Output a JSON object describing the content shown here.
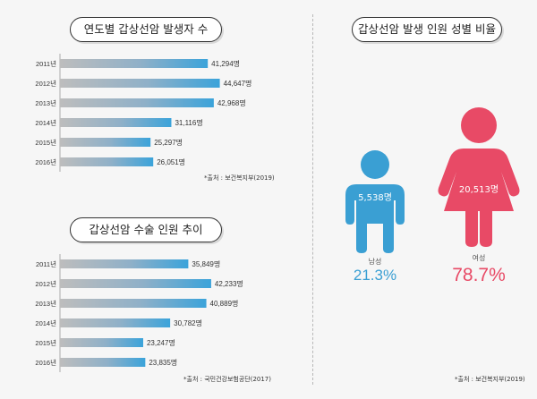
{
  "charts": [
    {
      "title": "연도별 갑상선암 발생자 수",
      "source": "*출처 : 보건복지부(2019)",
      "chart_data": {
        "type": "bar",
        "orientation": "horizontal",
        "categories": [
          "2011년",
          "2012년",
          "2013년",
          "2014년",
          "2015년",
          "2016년"
        ],
        "values": [
          41294,
          44647,
          42968,
          31116,
          25297,
          26051
        ],
        "value_labels": [
          "41,294명",
          "44,647명",
          "42,968명",
          "31,116명",
          "25,297명",
          "26,051명"
        ],
        "xlim": [
          0,
          45000
        ]
      }
    },
    {
      "title": "갑상선암 수술 인원 추이",
      "source": "*출처 : 국민건강보험공단(2017)",
      "chart_data": {
        "type": "bar",
        "orientation": "horizontal",
        "categories": [
          "2011년",
          "2012년",
          "2013년",
          "2014년",
          "2015년",
          "2016년"
        ],
        "values": [
          35849,
          42233,
          40889,
          30782,
          23247,
          23835
        ],
        "value_labels": [
          "35,849명",
          "42,233명",
          "40,889명",
          "30,782명",
          "23,247명",
          "23,835명"
        ],
        "xlim": [
          0,
          45000
        ]
      }
    }
  ],
  "gender": {
    "title": "갑상선암 발생 인원 성별 비율",
    "source": "*출처 : 보건복지부(2019)",
    "male": {
      "label": "남성",
      "count": "5,538명",
      "percent": "21.3%",
      "color": "#3a9fd3"
    },
    "female": {
      "label": "여성",
      "count": "20,513명",
      "percent": "78.7%",
      "color": "#e84a66"
    }
  }
}
